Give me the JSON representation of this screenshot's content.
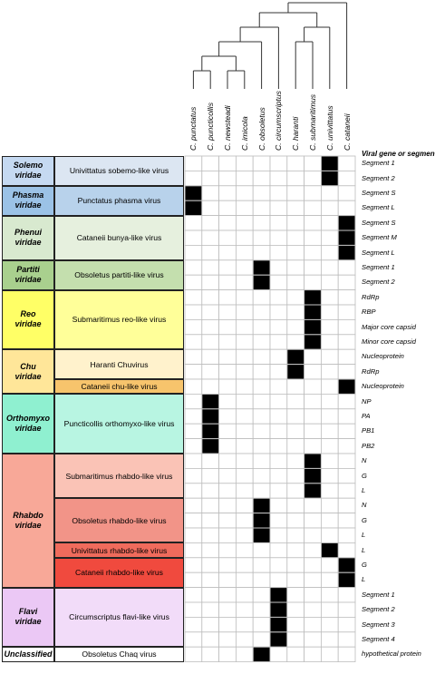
{
  "header_label": "Viral gene or segment",
  "species": [
    "C. punctatus",
    "C. puncticollis",
    "C. newsteadi",
    "C. imicola",
    "C. obsoletus",
    "C. circumscriptus",
    "C. haranti",
    "C. submaritimus",
    "C. univittatus",
    "C. cataneii"
  ],
  "families": [
    {
      "name": "Solemo\nviridae",
      "color": "#C5D9F1",
      "viruses": [
        {
          "name": "Univittatus sobemo-like virus",
          "color": "#DCE6F2",
          "segments": [
            {
              "label": "Segment 1",
              "hit": 8
            },
            {
              "label": "Segment 2",
              "hit": 8
            }
          ]
        }
      ]
    },
    {
      "name": "Phasma\nviridae",
      "color": "#9BC2E6",
      "viruses": [
        {
          "name": "Punctatus phasma virus",
          "color": "#B8D2EB",
          "segments": [
            {
              "label": "Segment S",
              "hit": 0
            },
            {
              "label": "Segment L",
              "hit": 0
            }
          ]
        }
      ]
    },
    {
      "name": "Phenui\nviridae",
      "color": "#D8E9CF",
      "viruses": [
        {
          "name": "Cataneii bunya-like virus",
          "color": "#E6F0DE",
          "segments": [
            {
              "label": "Segment S",
              "hit": 9
            },
            {
              "label": "Segment M",
              "hit": 9
            },
            {
              "label": "Segment L",
              "hit": 9
            }
          ]
        }
      ]
    },
    {
      "name": "Partiti\nviridae",
      "color": "#A9D08E",
      "viruses": [
        {
          "name": "Obsoletus partiti-like virus",
          "color": "#C4DFAE",
          "segments": [
            {
              "label": "Segment 1",
              "hit": 4
            },
            {
              "label": "Segment 2",
              "hit": 4
            }
          ]
        }
      ]
    },
    {
      "name": "Reo\nviridae",
      "color": "#FFFF66",
      "viruses": [
        {
          "name": "Submaritimus reo-like virus",
          "color": "#FFFF99",
          "segments": [
            {
              "label": "RdRp",
              "hit": 7
            },
            {
              "label": "RBP",
              "hit": 7
            },
            {
              "label": "Major core capsid",
              "hit": 7
            },
            {
              "label": "Minor core capsid",
              "hit": 7
            }
          ]
        }
      ]
    },
    {
      "name": "Chu\nviridae",
      "color": "#FFE699",
      "viruses": [
        {
          "name": "Haranti Chuvirus",
          "color": "#FFF2CC",
          "segments": [
            {
              "label": "Nucleoprotein",
              "hit": 6
            },
            {
              "label": "RdRp",
              "hit": 6
            }
          ]
        },
        {
          "name": "Cataneii chu-like virus",
          "color": "#F7C46C",
          "segments": [
            {
              "label": "Nucleoprotein",
              "hit": 9
            }
          ]
        }
      ]
    },
    {
      "name": "Orthomyxo\nviridae",
      "color": "#8FF0D0",
      "viruses": [
        {
          "name": "Puncticollis orthomyxo-like virus",
          "color": "#B8F5E2",
          "segments": [
            {
              "label": "NP",
              "hit": 1
            },
            {
              "label": "PA",
              "hit": 1
            },
            {
              "label": "PB1",
              "hit": 1
            },
            {
              "label": "PB2",
              "hit": 1
            }
          ]
        }
      ]
    },
    {
      "name": "Rhabdo\nviridae",
      "color": "#F8A898",
      "viruses": [
        {
          "name": "Submaritimus rhabdo-like virus",
          "color": "#FAC3B6",
          "segments": [
            {
              "label": "N",
              "hit": 7
            },
            {
              "label": "G",
              "hit": 7
            },
            {
              "label": "L",
              "hit": 7
            }
          ]
        },
        {
          "name": "Obsoletus rhabdo-like virus",
          "color": "#F29488",
          "segments": [
            {
              "label": "N",
              "hit": 4
            },
            {
              "label": "G",
              "hit": 4
            },
            {
              "label": "L",
              "hit": 4
            }
          ]
        },
        {
          "name": "Univittatus rhabdo-like virus",
          "color": "#F06B5C",
          "segments": [
            {
              "label": "L",
              "hit": 8
            }
          ]
        },
        {
          "name": "Cataneii rhabdo-like virus",
          "color": "#F04A3E",
          "segments": [
            {
              "label": "G",
              "hit": 9
            },
            {
              "label": "L",
              "hit": 9
            }
          ]
        }
      ]
    },
    {
      "name": "Flavi\nviridae",
      "color": "#EBC8F5",
      "viruses": [
        {
          "name": "Circumscriptus flavi-like virus",
          "color": "#F2DCF9",
          "segments": [
            {
              "label": "Segment 1",
              "hit": 5
            },
            {
              "label": "Segment 2",
              "hit": 5
            },
            {
              "label": "Segment 3",
              "hit": 5
            },
            {
              "label": "Segment 4",
              "hit": 5
            }
          ]
        }
      ]
    },
    {
      "name": "Unclassified",
      "color": "#FFFFFF",
      "viruses": [
        {
          "name": "Obsoletus Chaq virus",
          "color": "#FFFFFF",
          "segments": [
            {
              "label": "hypothetical protein",
              "hit": 4
            }
          ]
        }
      ]
    }
  ]
}
